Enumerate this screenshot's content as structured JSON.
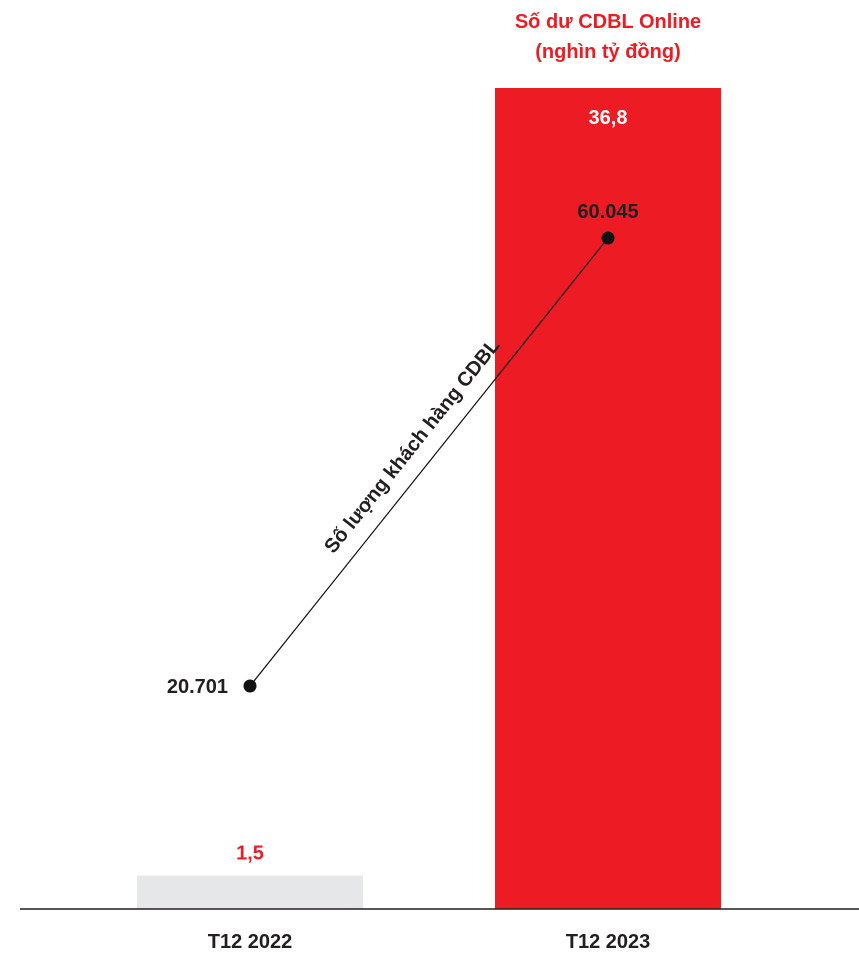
{
  "chart_data": {
    "type": "bar",
    "categories": [
      "T12 2022",
      "T12 2023"
    ],
    "series": [
      {
        "name": "Số dư CDBL Online",
        "unit": "(nghìn tỷ đồng)",
        "values": [
          1.5,
          36.8
        ],
        "labels": [
          "1,5",
          "36,8"
        ],
        "colors": [
          "#e6e7e9",
          "#ed1c24"
        ],
        "label_colors": [
          "#ed1c24",
          "#ffffff"
        ]
      },
      {
        "name": "Số lượng khách hàng CDBL",
        "type": "line",
        "values": [
          20701,
          60045
        ],
        "labels": [
          "20.701",
          "60.045"
        ],
        "color": "#111111"
      }
    ],
    "title": "",
    "xlabel": "",
    "ylabel": "",
    "grid": false,
    "legend": "none",
    "colors": {
      "accent": "#ed1c24",
      "bar_muted": "#e6e7e9",
      "text": "#231f20"
    }
  }
}
